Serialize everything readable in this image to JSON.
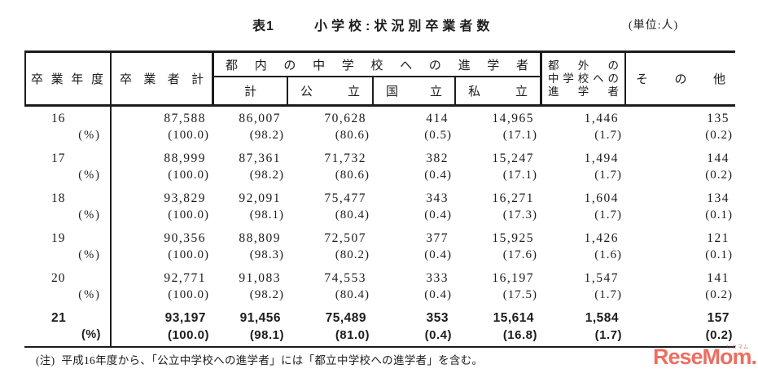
{
  "page": {
    "title_label": "表1",
    "title": "小学校:状況別卒業者数",
    "unit": "(単位:人)"
  },
  "table": {
    "headers": {
      "year": "卒業年度",
      "total": "卒業者計",
      "tokyo_group": "都内の中学校への進学者",
      "tokyo_total": "計",
      "tokyo_public": "公立",
      "tokyo_national": "国立",
      "tokyo_private": "私立",
      "outside_line1": "都外の",
      "outside_line2": "中学校への",
      "outside_line3": "進学者",
      "other": "その他"
    },
    "pct_row_label": "(%)",
    "rows": [
      {
        "year": "16",
        "values": [
          "87,588",
          "86,007",
          "70,628",
          "414",
          "14,965",
          "1,446",
          "135"
        ],
        "percents": [
          "(100.0)",
          "(98.2)",
          "(80.6)",
          "(0.5)",
          "(17.1)",
          "(1.7)",
          "(0.2)"
        ],
        "emphasis": false
      },
      {
        "year": "17",
        "values": [
          "88,999",
          "87,361",
          "71,732",
          "382",
          "15,247",
          "1,494",
          "144"
        ],
        "percents": [
          "(100.0)",
          "(98.2)",
          "(80.6)",
          "(0.4)",
          "(17.1)",
          "(1.7)",
          "(0.2)"
        ],
        "emphasis": false
      },
      {
        "year": "18",
        "values": [
          "93,829",
          "92,091",
          "75,477",
          "343",
          "16,271",
          "1,604",
          "134"
        ],
        "percents": [
          "(100.0)",
          "(98.1)",
          "(80.4)",
          "(0.4)",
          "(17.3)",
          "(1.7)",
          "(0.1)"
        ],
        "emphasis": false
      },
      {
        "year": "19",
        "values": [
          "90,356",
          "88,809",
          "72,507",
          "377",
          "15,925",
          "1,426",
          "121"
        ],
        "percents": [
          "(100.0)",
          "(98.3)",
          "(80.2)",
          "(0.4)",
          "(17.6)",
          "(1.6)",
          "(0.1)"
        ],
        "emphasis": false
      },
      {
        "year": "20",
        "values": [
          "92,771",
          "91,083",
          "74,553",
          "333",
          "16,197",
          "1,547",
          "141"
        ],
        "percents": [
          "(100.0)",
          "(98.2)",
          "(80.4)",
          "(0.4)",
          "(17.5)",
          "(1.7)",
          "(0.2)"
        ],
        "emphasis": false
      },
      {
        "year": "21",
        "values": [
          "93,197",
          "91,456",
          "75,489",
          "353",
          "15,614",
          "1,584",
          "157"
        ],
        "percents": [
          "(100.0)",
          "(98.1)",
          "(81.0)",
          "(0.4)",
          "(16.8)",
          "(1.7)",
          "(0.2)"
        ],
        "emphasis": true
      }
    ]
  },
  "note": {
    "label": "(注)",
    "text": "平成16年度から、「公立中学校への進学者」には「都立中学校への進学者」を含む。"
  },
  "watermark": {
    "text": "ReseMom.",
    "ruby": "リセマム",
    "color": "#e8503e"
  }
}
